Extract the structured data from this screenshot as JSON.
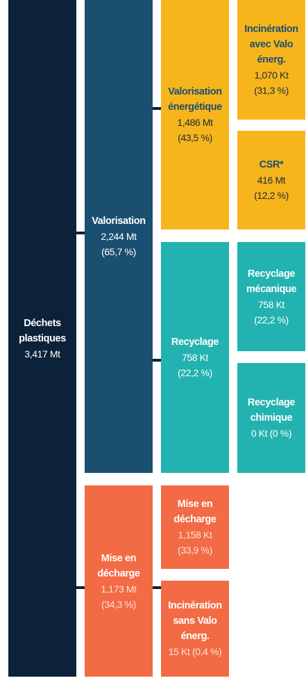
{
  "nodes": [
    {
      "title": "Déchets plastiques",
      "value": "3,417 Mt"
    },
    {
      "title": "Valorisation",
      "value": "2,244 Mt",
      "share": "(65,7 %)"
    },
    {
      "title": "Mise en décharge",
      "value": "1,173 Mt",
      "share": "(34,3 %)"
    },
    {
      "title": "Valorisation énergétique",
      "value": "1,486 Mt",
      "share": "(43,5 %)"
    },
    {
      "title": "Recyclage",
      "value": "758 Kt",
      "share": "(22,2 %)"
    },
    {
      "title": "Mise en décharge",
      "value": "1,158 Kt",
      "share": "(33,9 %)"
    },
    {
      "title": "Incinération sans Valo énerg.",
      "value": "15 Kt",
      "share": "(0,4 %)"
    },
    {
      "title": "Incinération avec Valo énerg.",
      "value": "1,070 Kt",
      "share": "(31,3 %)"
    },
    {
      "title": "CSR*",
      "value": "416 Mt",
      "share": "(12,2 %)"
    },
    {
      "title": "Recyclage mécanique",
      "value": "758 Kt",
      "share": "(22,2 %)"
    },
    {
      "title": "Recyclage chimique",
      "value": "0 Kt",
      "share": "(0 %)"
    }
  ]
}
